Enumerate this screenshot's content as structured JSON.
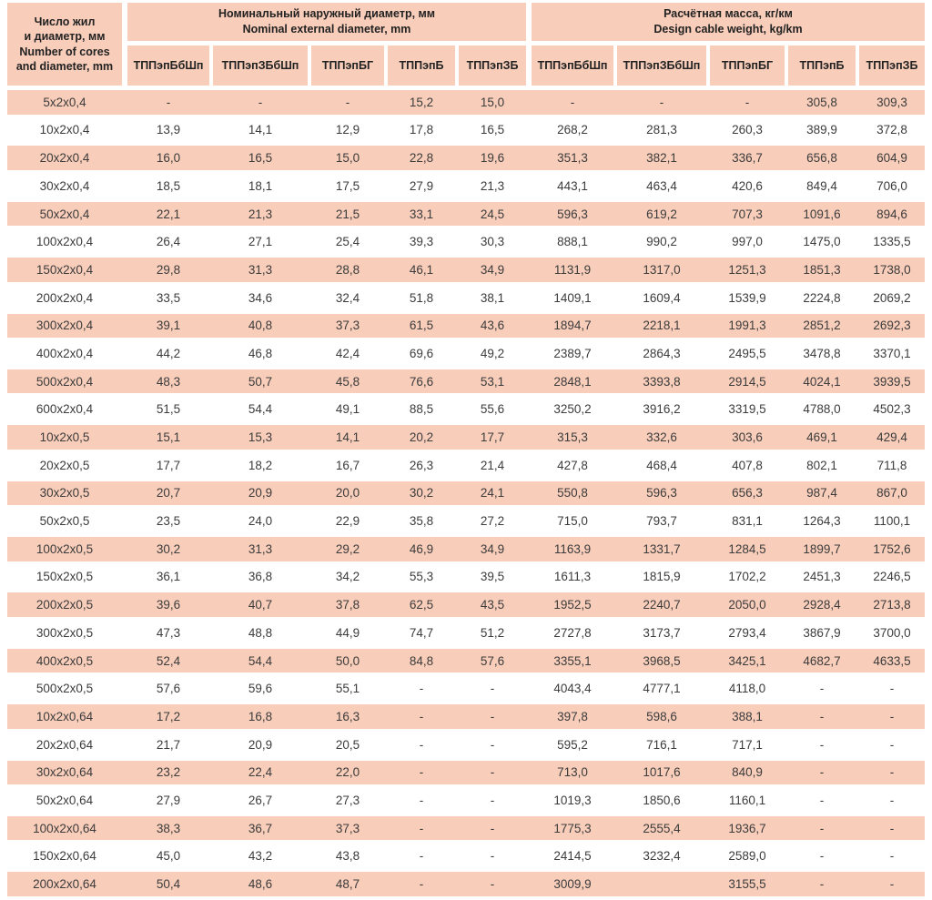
{
  "colors": {
    "stripe": "#f8cdba",
    "text": "#3c3c3c"
  },
  "table": {
    "corner": {
      "lines": [
        "Число жил",
        "и диаметр, мм",
        "Number of cores",
        "and diameter, mm"
      ]
    },
    "groups": [
      {
        "title_ru": "Номинальный наружный диаметр, мм",
        "title_en": "Nominal external diameter, mm",
        "columns": [
          "ТППэпБбШп",
          "ТППэпЗБбШп",
          "ТППэпБГ",
          "ТППэпБ",
          "ТППэпЗБ"
        ]
      },
      {
        "title_ru": "Расчётная масса, кг/км",
        "title_en": "Design cable weight, kg/km",
        "columns": [
          "ТППэпБбШп",
          "ТППэпЗБбШп",
          "ТППэпБГ",
          "ТППэпБ",
          "ТППэпЗБ"
        ]
      }
    ],
    "rows": [
      {
        "label": "5x2x0,4",
        "diameter": [
          "-",
          "-",
          "-",
          "15,2",
          "15,0"
        ],
        "weight": [
          "-",
          "-",
          "-",
          "305,8",
          "309,3"
        ]
      },
      {
        "label": "10x2x0,4",
        "diameter": [
          "13,9",
          "14,1",
          "12,9",
          "17,8",
          "16,5"
        ],
        "weight": [
          "268,2",
          "281,3",
          "260,3",
          "389,9",
          "372,8"
        ]
      },
      {
        "label": "20x2x0,4",
        "diameter": [
          "16,0",
          "16,5",
          "15,0",
          "22,8",
          "19,6"
        ],
        "weight": [
          "351,3",
          "382,1",
          "336,7",
          "656,8",
          "604,9"
        ]
      },
      {
        "label": "30x2x0,4",
        "diameter": [
          "18,5",
          "18,1",
          "17,5",
          "27,9",
          "21,3"
        ],
        "weight": [
          "443,1",
          "463,4",
          "420,6",
          "849,4",
          "706,0"
        ]
      },
      {
        "label": "50x2x0,4",
        "diameter": [
          "22,1",
          "21,3",
          "21,5",
          "33,1",
          "24,5"
        ],
        "weight": [
          "596,3",
          "619,2",
          "707,3",
          "1091,6",
          "894,6"
        ]
      },
      {
        "label": "100x2x0,4",
        "diameter": [
          "26,4",
          "27,1",
          "25,4",
          "39,3",
          "30,3"
        ],
        "weight": [
          "888,1",
          "990,2",
          "997,0",
          "1475,0",
          "1335,5"
        ]
      },
      {
        "label": "150x2x0,4",
        "diameter": [
          "29,8",
          "31,3",
          "28,8",
          "46,1",
          "34,9"
        ],
        "weight": [
          "1131,9",
          "1317,0",
          "1251,3",
          "1851,3",
          "1738,0"
        ]
      },
      {
        "label": "200x2x0,4",
        "diameter": [
          "33,5",
          "34,6",
          "32,4",
          "51,8",
          "38,1"
        ],
        "weight": [
          "1409,1",
          "1609,4",
          "1539,9",
          "2224,8",
          "2069,2"
        ]
      },
      {
        "label": "300x2x0,4",
        "diameter": [
          "39,1",
          "40,8",
          "37,3",
          "61,5",
          "43,6"
        ],
        "weight": [
          "1894,7",
          "2218,1",
          "1991,3",
          "2851,2",
          "2692,3"
        ]
      },
      {
        "label": "400x2x0,4",
        "diameter": [
          "44,2",
          "46,8",
          "42,4",
          "69,6",
          "49,2"
        ],
        "weight": [
          "2389,7",
          "2864,3",
          "2495,5",
          "3478,8",
          "3370,1"
        ]
      },
      {
        "label": "500x2x0,4",
        "diameter": [
          "48,3",
          "50,7",
          "45,8",
          "76,6",
          "53,1"
        ],
        "weight": [
          "2848,1",
          "3393,8",
          "2914,5",
          "4024,1",
          "3939,5"
        ]
      },
      {
        "label": "600x2x0,4",
        "diameter": [
          "51,5",
          "54,4",
          "49,1",
          "88,5",
          "55,6"
        ],
        "weight": [
          "3250,2",
          "3916,2",
          "3319,5",
          "4788,0",
          "4502,3"
        ]
      },
      {
        "label": "10x2x0,5",
        "diameter": [
          "15,1",
          "15,3",
          "14,1",
          "20,2",
          "17,7"
        ],
        "weight": [
          "315,3",
          "332,6",
          "303,6",
          "469,1",
          "429,4"
        ]
      },
      {
        "label": "20x2x0,5",
        "diameter": [
          "17,7",
          "18,2",
          "16,7",
          "26,3",
          "21,4"
        ],
        "weight": [
          "427,8",
          "468,4",
          "407,8",
          "802,1",
          "711,8"
        ]
      },
      {
        "label": "30x2x0,5",
        "diameter": [
          "20,7",
          "20,9",
          "20,0",
          "30,2",
          "24,1"
        ],
        "weight": [
          "550,8",
          "596,3",
          "656,3",
          "987,4",
          "867,0"
        ]
      },
      {
        "label": "50x2x0,5",
        "diameter": [
          "23,5",
          "24,0",
          "22,9",
          "35,8",
          "27,2"
        ],
        "weight": [
          "715,0",
          "793,7",
          "831,1",
          "1264,3",
          "1100,1"
        ]
      },
      {
        "label": "100x2x0,5",
        "diameter": [
          "30,2",
          "31,3",
          "29,2",
          "46,9",
          "34,9"
        ],
        "weight": [
          "1163,9",
          "1331,7",
          "1284,5",
          "1899,7",
          "1752,6"
        ]
      },
      {
        "label": "150x2x0,5",
        "diameter": [
          "36,1",
          "36,8",
          "34,2",
          "55,3",
          "39,5"
        ],
        "weight": [
          "1611,3",
          "1815,9",
          "1702,2",
          "2451,3",
          "2246,5"
        ]
      },
      {
        "label": "200x2x0,5",
        "diameter": [
          "39,6",
          "40,7",
          "37,8",
          "62,5",
          "43,5"
        ],
        "weight": [
          "1952,5",
          "2240,7",
          "2050,0",
          "2928,4",
          "2713,8"
        ]
      },
      {
        "label": "300x2x0,5",
        "diameter": [
          "47,3",
          "48,8",
          "44,9",
          "74,7",
          "51,2"
        ],
        "weight": [
          "2727,8",
          "3173,7",
          "2793,4",
          "3867,9",
          "3700,0"
        ]
      },
      {
        "label": "400x2x0,5",
        "diameter": [
          "52,4",
          "54,4",
          "50,0",
          "84,8",
          "57,6"
        ],
        "weight": [
          "3355,1",
          "3968,5",
          "3425,1",
          "4682,7",
          "4633,5"
        ]
      },
      {
        "label": "500x2x0,5",
        "diameter": [
          "57,6",
          "59,6",
          "55,1",
          "-",
          "-"
        ],
        "weight": [
          "4043,4",
          "4777,1",
          "4118,0",
          "-",
          "-"
        ]
      },
      {
        "label": "10x2x0,64",
        "diameter": [
          "17,2",
          "16,8",
          "16,3",
          "-",
          "-"
        ],
        "weight": [
          "397,8",
          "598,6",
          "388,1",
          "-",
          "-"
        ]
      },
      {
        "label": "20x2x0,64",
        "diameter": [
          "21,7",
          "20,9",
          "20,5",
          "-",
          "-"
        ],
        "weight": [
          "595,2",
          "716,1",
          "717,1",
          "-",
          "-"
        ]
      },
      {
        "label": "30x2x0,64",
        "diameter": [
          "23,2",
          "22,4",
          "22,0",
          "-",
          "-"
        ],
        "weight": [
          "713,0",
          "1017,6",
          "840,9",
          "-",
          "-"
        ]
      },
      {
        "label": "50x2x0,64",
        "diameter": [
          "27,9",
          "26,7",
          "27,3",
          "-",
          "-"
        ],
        "weight": [
          "1019,3",
          "1850,6",
          "1160,1",
          "-",
          "-"
        ]
      },
      {
        "label": "100x2x0,64",
        "diameter": [
          "38,3",
          "36,7",
          "37,3",
          "-",
          "-"
        ],
        "weight": [
          "1775,3",
          "2555,4",
          "1936,7",
          "-",
          "-"
        ]
      },
      {
        "label": "150x2x0,64",
        "diameter": [
          "45,0",
          "43,2",
          "43,8",
          "-",
          "-"
        ],
        "weight": [
          "2414,5",
          "3232,4",
          "2589,0",
          "-",
          "-"
        ]
      },
      {
        "label": "200x2x0,64",
        "diameter": [
          "50,4",
          "48,6",
          "48,7",
          "-",
          "-"
        ],
        "weight": [
          "3009,9",
          "",
          "3155,5",
          "-",
          "-"
        ]
      }
    ]
  }
}
